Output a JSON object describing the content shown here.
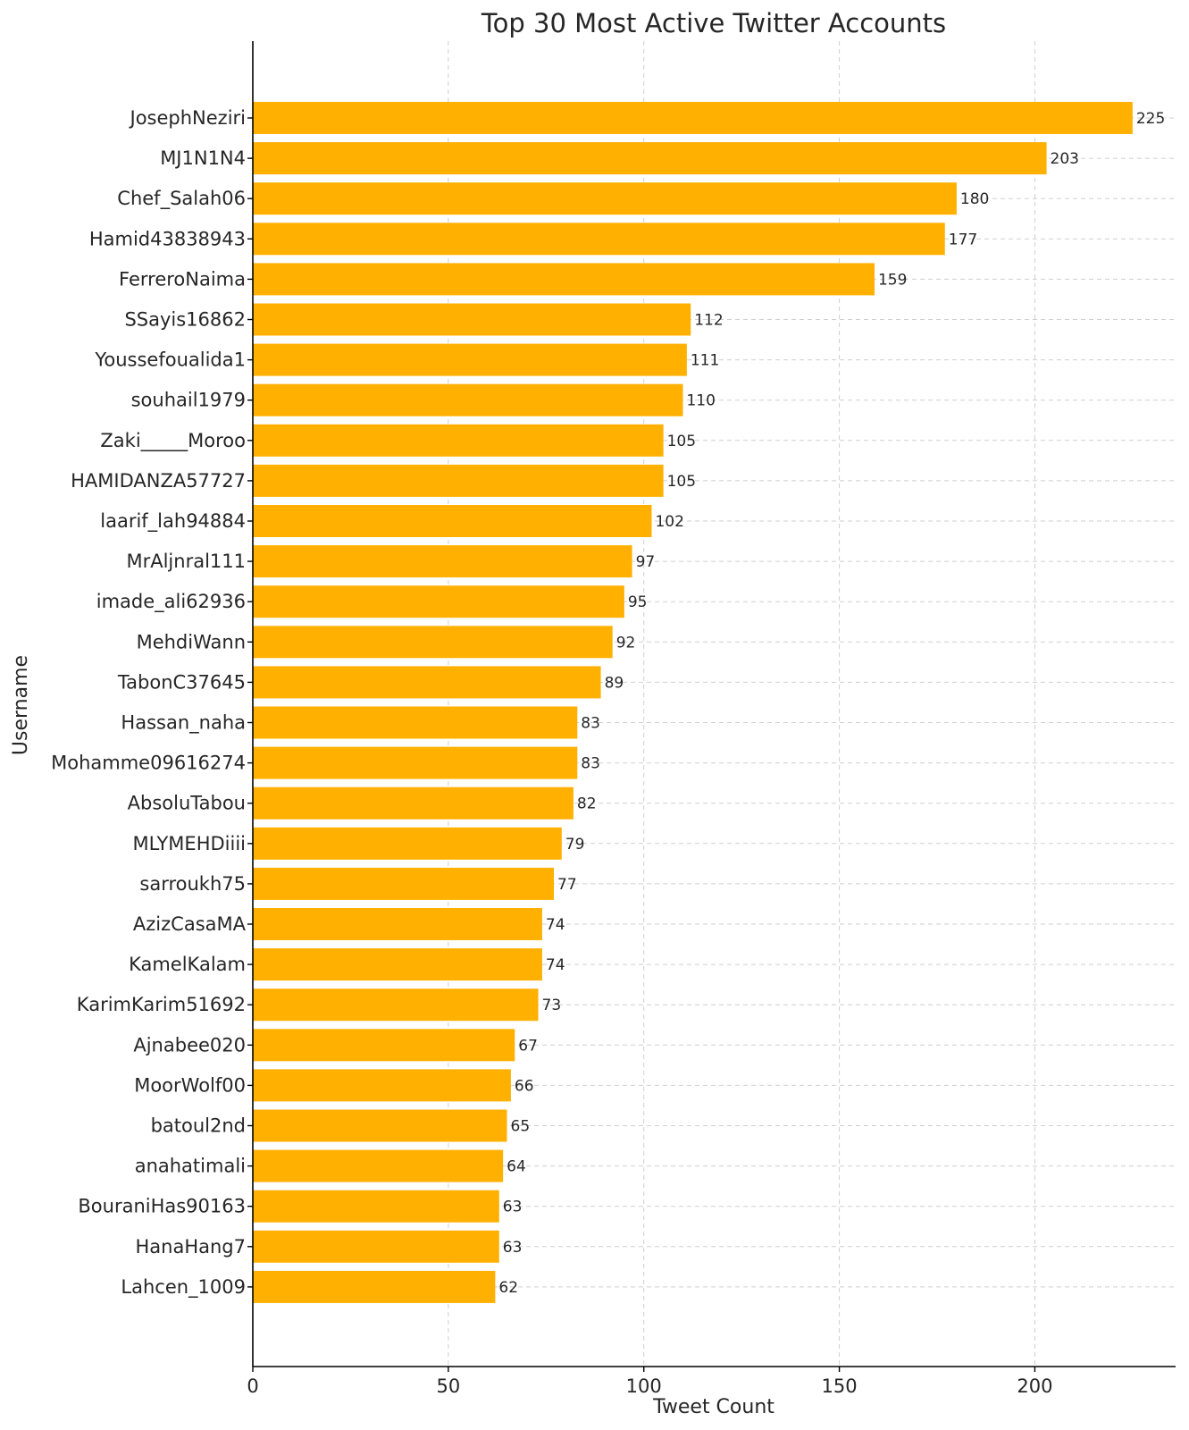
{
  "chart_data": {
    "type": "bar",
    "orientation": "horizontal",
    "title": "Top 30 Most Active Twitter Accounts",
    "xlabel": "Tweet Count",
    "ylabel": "Username",
    "xlim": [
      0,
      236
    ],
    "xticks": [
      0,
      50,
      100,
      150,
      200
    ],
    "grid": true,
    "bar_color": "#FFB000",
    "categories": [
      "JosephNeziri",
      "MJ1N1N4",
      "Chef_Salah06",
      "Hamid43838943",
      "FerreroNaima",
      "SSayis16862",
      "Youssefoualida1",
      "souhail1979",
      "Zaki_____Moroo",
      "HAMIDANZA57727",
      "laarif_lah94884",
      "MrAljnral111",
      "imade_ali62936",
      "MehdiWann",
      "TabonC37645",
      "Hassan_naha",
      "Mohamme09616274",
      "AbsoluTabou",
      "MLYMEHDiiii",
      "sarroukh75",
      "AzizCasaMA",
      "KamelKalam",
      "KarimKarim51692",
      "Ajnabee020",
      "MoorWolf00",
      "batoul2nd",
      "anahatimali",
      "BouraniHas90163",
      "HanaHang7",
      "Lahcen_1009"
    ],
    "values": [
      225,
      203,
      180,
      177,
      159,
      112,
      111,
      110,
      105,
      105,
      102,
      97,
      95,
      92,
      89,
      83,
      83,
      82,
      79,
      77,
      74,
      74,
      73,
      67,
      66,
      65,
      64,
      63,
      63,
      62
    ]
  }
}
